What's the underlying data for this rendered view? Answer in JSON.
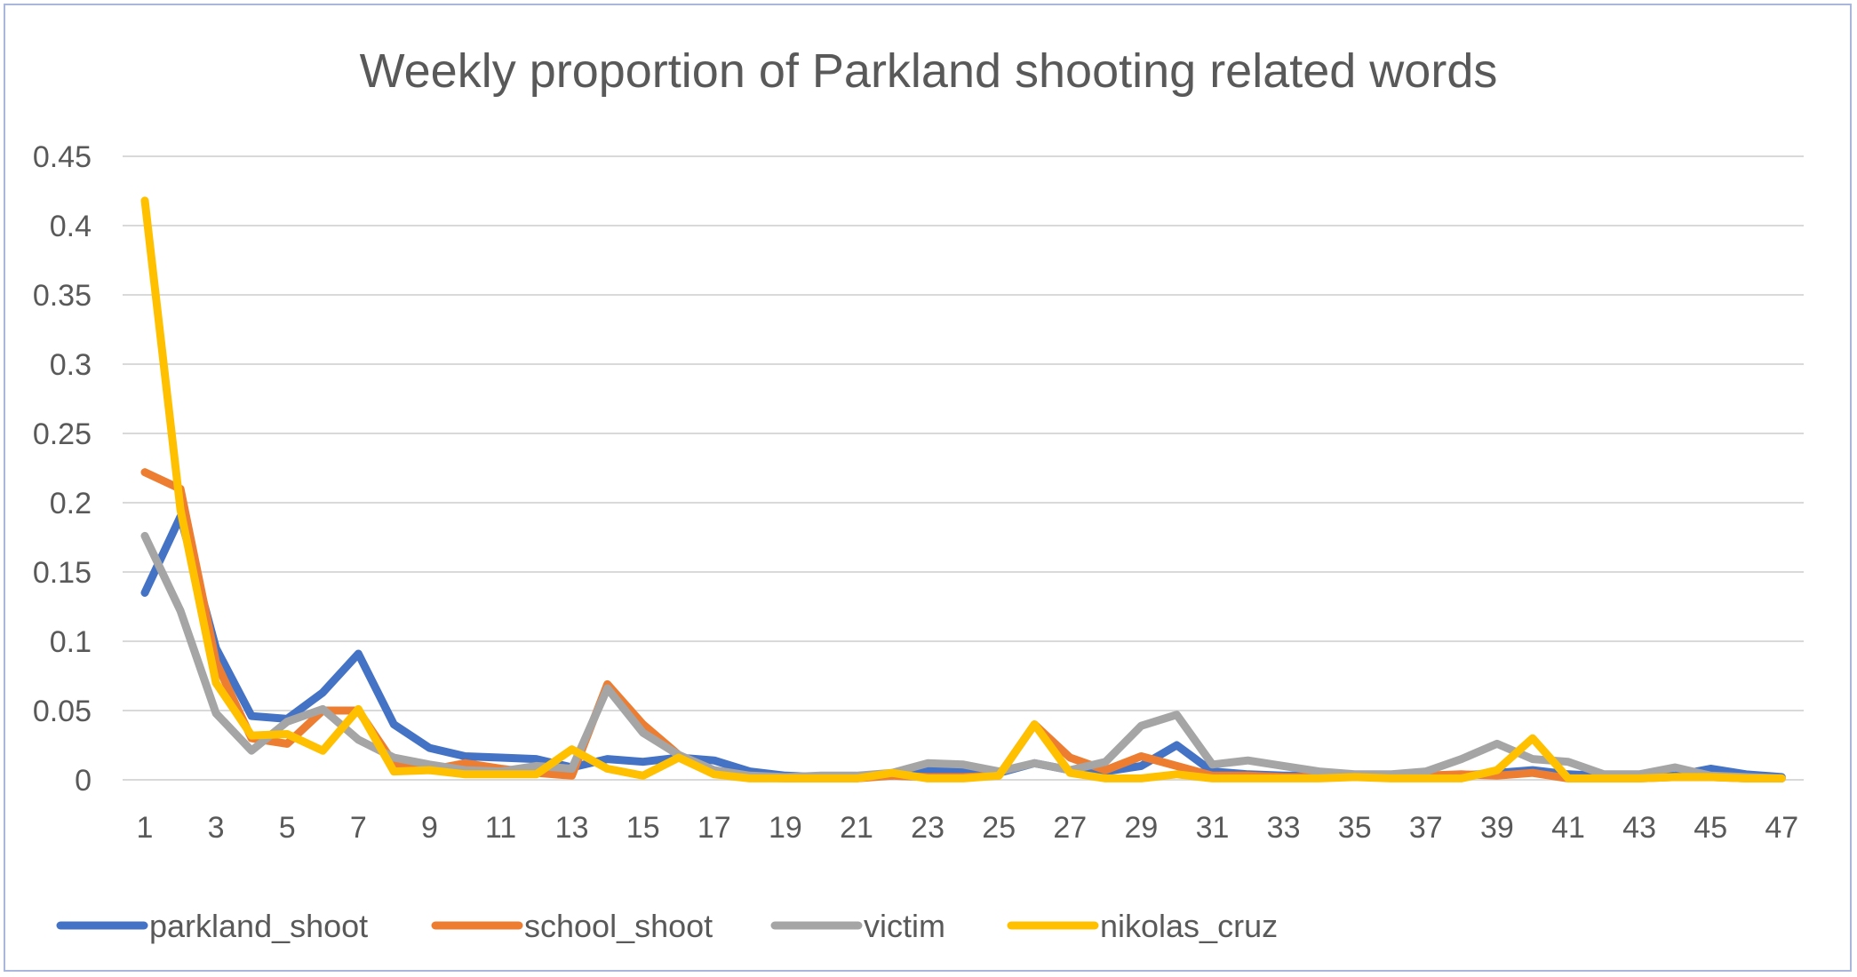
{
  "chart_data": {
    "type": "line",
    "title": "Weekly proportion of Parkland shooting related words",
    "xlabel": "",
    "ylabel": "",
    "x": [
      1,
      2,
      3,
      4,
      5,
      6,
      7,
      8,
      9,
      10,
      11,
      12,
      13,
      14,
      15,
      16,
      17,
      18,
      19,
      20,
      21,
      22,
      23,
      24,
      25,
      26,
      27,
      28,
      29,
      30,
      31,
      32,
      33,
      34,
      35,
      36,
      37,
      38,
      39,
      40,
      41,
      42,
      43,
      44,
      45,
      46,
      47
    ],
    "x_tick_labels": [
      "1",
      "3",
      "5",
      "7",
      "9",
      "11",
      "13",
      "15",
      "17",
      "19",
      "21",
      "23",
      "25",
      "27",
      "29",
      "31",
      "33",
      "35",
      "37",
      "39",
      "41",
      "43",
      "45",
      "47"
    ],
    "ylim": [
      0,
      0.45
    ],
    "y_tick_labels": [
      "0",
      "0.05",
      "0.1",
      "0.15",
      "0.2",
      "0.25",
      "0.3",
      "0.35",
      "0.4",
      "0.45"
    ],
    "grid": true,
    "legend_position": "bottom-left",
    "series": [
      {
        "name": "parkland_shoot",
        "color": "#4472c4",
        "values": [
          0.135,
          0.19,
          0.095,
          0.046,
          0.044,
          0.063,
          0.091,
          0.04,
          0.023,
          0.017,
          0.016,
          0.015,
          0.009,
          0.015,
          0.013,
          0.016,
          0.014,
          0.006,
          0.003,
          0.002,
          0.002,
          0.003,
          0.007,
          0.007,
          0.005,
          0.012,
          0.007,
          0.006,
          0.01,
          0.025,
          0.006,
          0.004,
          0.003,
          0.003,
          0.003,
          0.002,
          0.002,
          0.003,
          0.005,
          0.007,
          0.004,
          0.003,
          0.003,
          0.003,
          0.008,
          0.004,
          0.002
        ]
      },
      {
        "name": "school_shoot",
        "color": "#ed7d31",
        "values": [
          0.222,
          0.21,
          0.085,
          0.03,
          0.026,
          0.05,
          0.05,
          0.012,
          0.007,
          0.012,
          0.008,
          0.005,
          0.003,
          0.069,
          0.04,
          0.018,
          0.005,
          0.002,
          0.001,
          0.001,
          0.001,
          0.003,
          0.002,
          0.002,
          0.003,
          0.04,
          0.016,
          0.007,
          0.017,
          0.01,
          0.003,
          0.003,
          0.002,
          0.002,
          0.002,
          0.002,
          0.003,
          0.004,
          0.003,
          0.005,
          0.001,
          0.001,
          0.001,
          0.002,
          0.002,
          0.001,
          0.001
        ]
      },
      {
        "name": "victim",
        "color": "#a5a5a5",
        "values": [
          0.176,
          0.122,
          0.048,
          0.021,
          0.042,
          0.051,
          0.029,
          0.016,
          0.011,
          0.007,
          0.006,
          0.01,
          0.008,
          0.066,
          0.034,
          0.018,
          0.007,
          0.003,
          0.002,
          0.003,
          0.003,
          0.005,
          0.012,
          0.011,
          0.006,
          0.012,
          0.007,
          0.013,
          0.039,
          0.047,
          0.011,
          0.014,
          0.01,
          0.006,
          0.004,
          0.004,
          0.006,
          0.015,
          0.026,
          0.015,
          0.013,
          0.004,
          0.004,
          0.009,
          0.003,
          0.002,
          0.001
        ]
      },
      {
        "name": "nikolas_cruz",
        "color": "#ffc000",
        "values": [
          0.418,
          0.195,
          0.07,
          0.032,
          0.033,
          0.021,
          0.051,
          0.006,
          0.007,
          0.004,
          0.004,
          0.004,
          0.022,
          0.008,
          0.003,
          0.016,
          0.004,
          0.001,
          0.001,
          0.001,
          0.001,
          0.005,
          0.001,
          0.001,
          0.003,
          0.04,
          0.005,
          0.001,
          0.001,
          0.004,
          0.001,
          0.001,
          0.001,
          0.001,
          0.002,
          0.001,
          0.001,
          0.001,
          0.007,
          0.03,
          0.001,
          0.001,
          0.001,
          0.002,
          0.002,
          0.001,
          0.001
        ]
      }
    ]
  }
}
